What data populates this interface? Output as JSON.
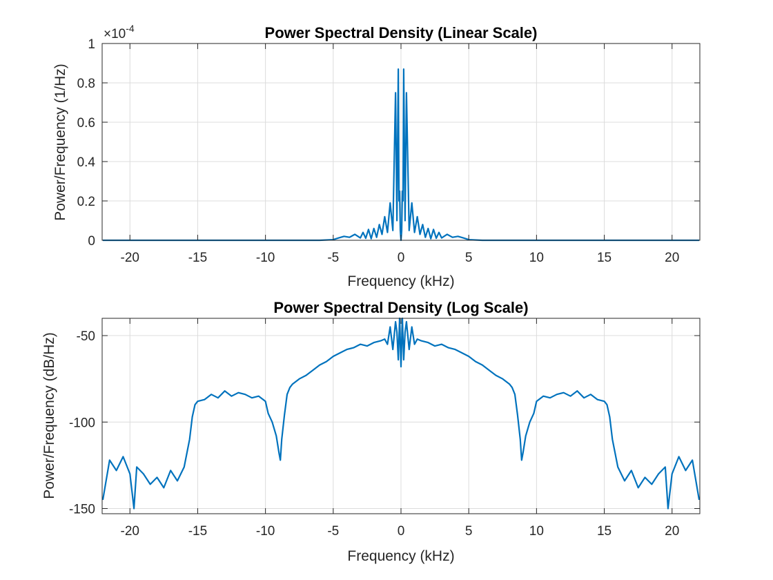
{
  "colors": {
    "series": "#0072BD",
    "axes": "#262626",
    "grid": "#dcdcdc",
    "background": "#ffffff"
  },
  "chart_data": [
    {
      "type": "line",
      "title": "Power Spectral Density (Linear Scale)",
      "xlabel": "Frequency (kHz)",
      "ylabel": "Power/Frequency (1/Hz)",
      "exponent_label": "×10",
      "exponent_power": "-4",
      "xlim": [
        -22.05,
        22.05
      ],
      "ylim": [
        0,
        1
      ],
      "xticks": [
        -20,
        -15,
        -10,
        -5,
        0,
        5,
        10,
        15,
        20
      ],
      "xtick_labels": [
        "-20",
        "-15",
        "-10",
        "-5",
        "0",
        "5",
        "10",
        "15",
        "20"
      ],
      "yticks": [
        0,
        0.2,
        0.4,
        0.6,
        0.8,
        1
      ],
      "ytick_labels": [
        "0",
        "0.2",
        "0.4",
        "0.6",
        "0.8",
        "1"
      ],
      "grid": true,
      "series": [
        {
          "x": [
            -22,
            -6,
            -5,
            -4.6,
            -4.2,
            -3.8,
            -3.4,
            -3.0,
            -2.8,
            -2.6,
            -2.4,
            -2.2,
            -2.0,
            -1.8,
            -1.6,
            -1.4,
            -1.2,
            -1.0,
            -0.8,
            -0.6,
            -0.4,
            -0.3,
            -0.2,
            -0.15,
            -0.1,
            -0.05,
            0,
            0.05,
            0.1,
            0.15,
            0.2,
            0.3,
            0.4,
            0.6,
            0.8,
            1.0,
            1.2,
            1.4,
            1.6,
            1.8,
            2.0,
            2.2,
            2.4,
            2.6,
            2.8,
            3.0,
            3.4,
            3.8,
            4.2,
            4.6,
            5,
            6,
            22
          ],
          "values": [
            0,
            0,
            0.003,
            0.012,
            0.02,
            0.015,
            0.03,
            0.012,
            0.04,
            0.01,
            0.055,
            0.008,
            0.06,
            0.015,
            0.08,
            0.03,
            0.12,
            0.04,
            0.19,
            0.05,
            0.75,
            0.1,
            0.87,
            0.2,
            0.25,
            0.05,
            0.0,
            0.05,
            0.25,
            0.2,
            0.87,
            0.1,
            0.75,
            0.05,
            0.19,
            0.04,
            0.12,
            0.03,
            0.08,
            0.015,
            0.06,
            0.008,
            0.055,
            0.01,
            0.04,
            0.012,
            0.03,
            0.015,
            0.02,
            0.012,
            0.003,
            0,
            0
          ]
        }
      ]
    },
    {
      "type": "line",
      "title": "Power Spectral Density (Log Scale)",
      "xlabel": "Frequency (kHz)",
      "ylabel": "Power/Frequency (dB/Hz)",
      "xlim": [
        -22.05,
        22.05
      ],
      "ylim": [
        -153,
        -40
      ],
      "xticks": [
        -20,
        -15,
        -10,
        -5,
        0,
        5,
        10,
        15,
        20
      ],
      "xtick_labels": [
        "-20",
        "-15",
        "-10",
        "-5",
        "0",
        "5",
        "10",
        "15",
        "20"
      ],
      "yticks": [
        -150,
        -100,
        -50
      ],
      "ytick_labels": [
        "-150",
        "-100",
        "-50"
      ],
      "grid": true,
      "series": [
        {
          "x": [
            -22,
            -21.5,
            -21,
            -20.5,
            -20,
            -19.7,
            -19.5,
            -19,
            -18.5,
            -18,
            -17.5,
            -17,
            -16.5,
            -16,
            -15.6,
            -15.4,
            -15.2,
            -15,
            -14.5,
            -14,
            -13.5,
            -13,
            -12.5,
            -12,
            -11.5,
            -11,
            -10.5,
            -10,
            -9.8,
            -9.5,
            -9.2,
            -9.0,
            -8.9,
            -8.8,
            -8.6,
            -8.4,
            -8.2,
            -8,
            -7.5,
            -7,
            -6.5,
            -6,
            -5.5,
            -5,
            -4.5,
            -4,
            -3.5,
            -3,
            -2.5,
            -2,
            -1.5,
            -1.2,
            -1,
            -0.8,
            -0.6,
            -0.4,
            -0.3,
            -0.2,
            -0.1,
            0,
            0.1,
            0.2,
            0.3,
            0.4,
            0.6,
            0.8,
            1,
            1.2,
            1.5,
            2,
            2.5,
            3,
            3.5,
            4,
            4.5,
            5,
            5.5,
            6,
            6.5,
            7,
            7.5,
            8,
            8.2,
            8.4,
            8.6,
            8.8,
            8.9,
            9.0,
            9.2,
            9.5,
            9.8,
            10,
            10.5,
            11,
            11.5,
            12,
            12.5,
            13,
            13.5,
            14,
            14.5,
            15,
            15.2,
            15.4,
            15.6,
            16,
            16.5,
            17,
            17.5,
            18,
            18.5,
            19,
            19.5,
            19.7,
            20,
            20.5,
            21,
            21.5,
            22
          ],
          "values": [
            -145,
            -122,
            -128,
            -120,
            -130,
            -150,
            -126,
            -130,
            -136,
            -132,
            -138,
            -128,
            -134,
            -126,
            -110,
            -97,
            -90,
            -88,
            -87,
            -84,
            -86,
            -82,
            -85,
            -83,
            -84,
            -86,
            -85,
            -88,
            -95,
            -100,
            -108,
            -118,
            -122,
            -110,
            -96,
            -84,
            -80,
            -78,
            -75,
            -73,
            -70,
            -67,
            -65,
            -62,
            -60,
            -58,
            -57,
            -55,
            -56,
            -54,
            -53,
            -52,
            -55,
            -45,
            -58,
            -42,
            -48,
            -64,
            -40,
            -68,
            -40,
            -64,
            -48,
            -42,
            -58,
            -45,
            -55,
            -52,
            -53,
            -54,
            -56,
            -55,
            -57,
            -58,
            -60,
            -62,
            -65,
            -67,
            -70,
            -73,
            -75,
            -78,
            -80,
            -84,
            -96,
            -110,
            -122,
            -118,
            -108,
            -100,
            -95,
            -88,
            -85,
            -86,
            -84,
            -83,
            -85,
            -82,
            -86,
            -84,
            -87,
            -88,
            -90,
            -97,
            -110,
            -126,
            -134,
            -128,
            -138,
            -132,
            -136,
            -130,
            -126,
            -150,
            -130,
            -120,
            -128,
            -122,
            -145
          ]
        }
      ]
    }
  ]
}
